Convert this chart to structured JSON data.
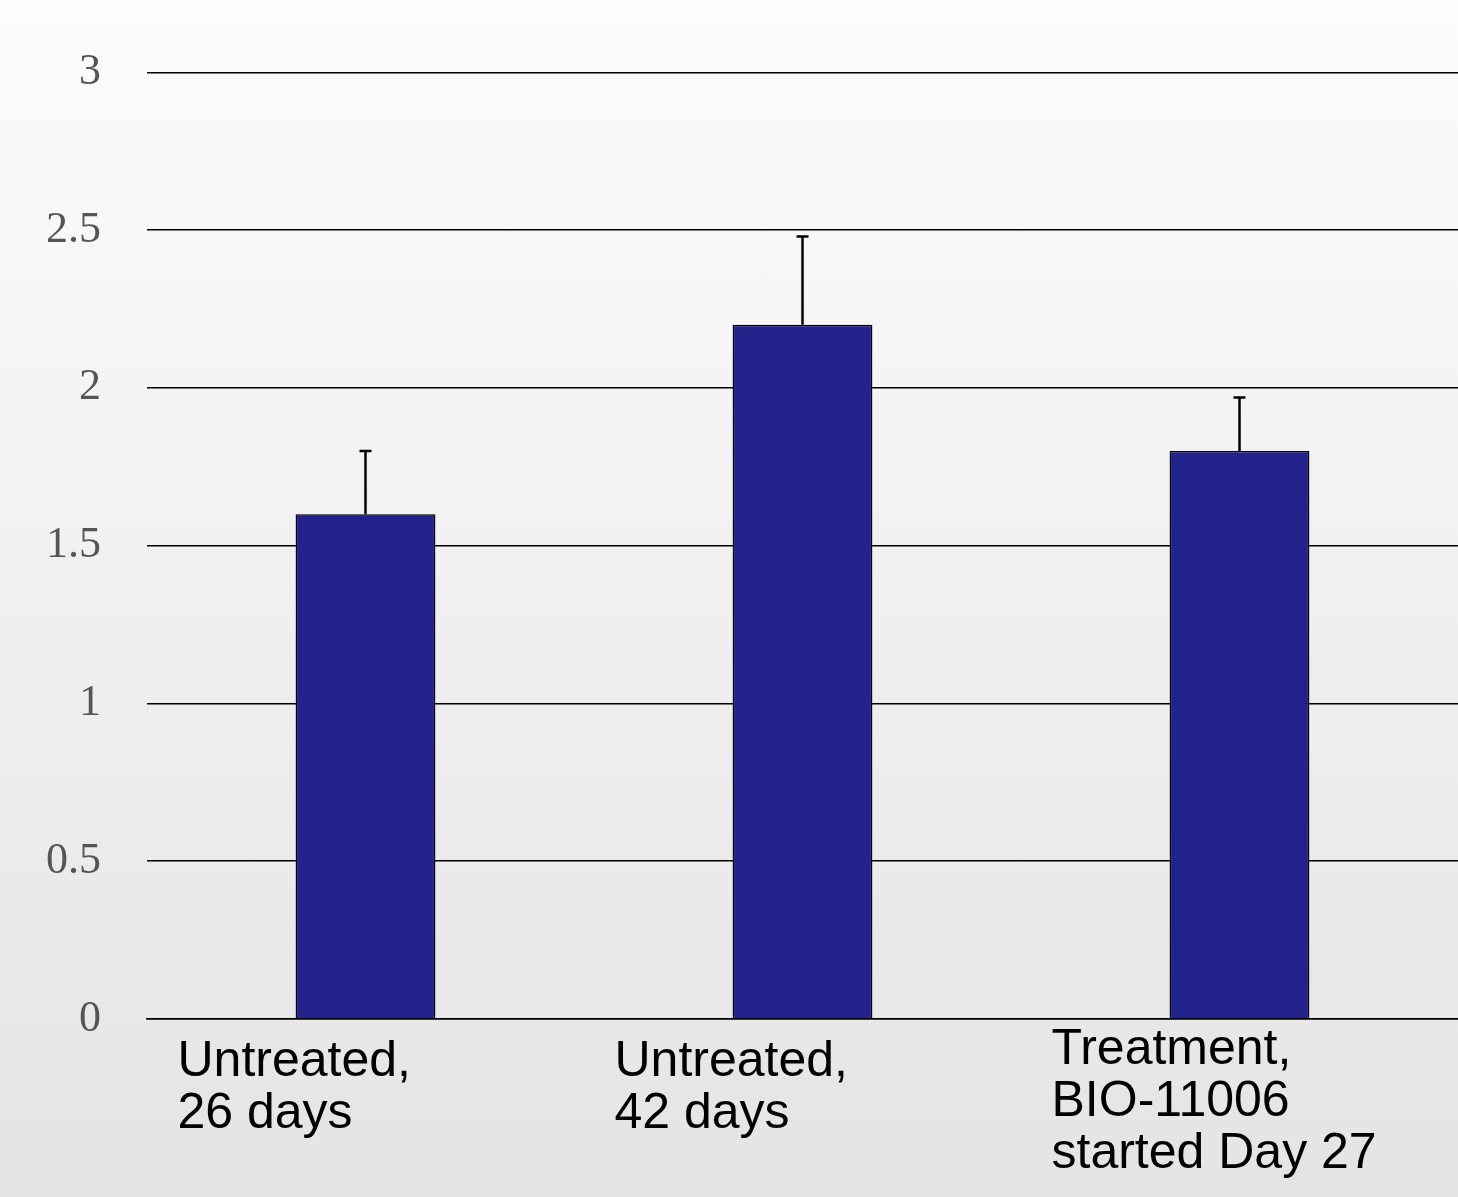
{
  "chart_data": {
    "type": "bar",
    "categories": [
      "Untreated, 26 days",
      "Untreated, 42 days",
      "Treatment, BIO-11006 started Day 27"
    ],
    "values": [
      1.6,
      2.2,
      1.8
    ],
    "color": "#22228a",
    "errors": [
      [
        1.6,
        1.8
      ],
      [
        2.2,
        2.48
      ],
      [
        1.8,
        1.97
      ]
    ],
    "ylim": [
      0,
      3
    ],
    "yticks": [
      0,
      0.5,
      1,
      1.5,
      2,
      2.5,
      3
    ],
    "grid": "y",
    "legend": false
  }
}
